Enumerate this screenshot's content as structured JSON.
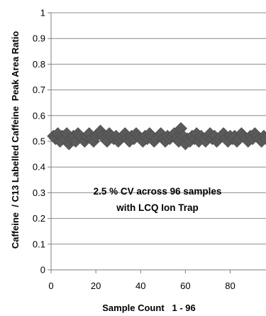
{
  "chart_data": {
    "type": "scatter",
    "title": "",
    "xlabel": "Sample Count   1 - 96",
    "ylabel": "Caffeine  / C13 Labelled Caffeine  Peak Area Ratio",
    "xlim": [
      0,
      96
    ],
    "ylim": [
      0,
      1
    ],
    "x_ticks": [
      0,
      20,
      40,
      60,
      80
    ],
    "y_ticks": [
      0,
      0.1,
      0.2,
      0.3,
      0.4,
      0.5,
      0.6,
      0.7,
      0.8,
      0.9,
      1
    ],
    "grid": true,
    "legend": "none",
    "marker": "diamond",
    "marker_color": "#5a5a5a",
    "annotation": [
      "2.5 % CV across 96 samples",
      "with LCQ Ion Trap"
    ],
    "series": [
      {
        "x": [
          1,
          2,
          3,
          4,
          5,
          6,
          7,
          8,
          9,
          10,
          11,
          12,
          13,
          14,
          15,
          16,
          17,
          18,
          19,
          20,
          21,
          22,
          23,
          24,
          25,
          26,
          27,
          28,
          29,
          30,
          31,
          32,
          33,
          34,
          35,
          36,
          37,
          38,
          39,
          40,
          41,
          42,
          43,
          44,
          45,
          46,
          47,
          48,
          49,
          50,
          51,
          52,
          53,
          54,
          55,
          56,
          57,
          58,
          59,
          60,
          61,
          62,
          63,
          64,
          65,
          66,
          67,
          68,
          69,
          70,
          71,
          72,
          73,
          74,
          75,
          76,
          77,
          78,
          79,
          80,
          81,
          82,
          83,
          84,
          85,
          86,
          87,
          88,
          89,
          90,
          91,
          92,
          93,
          94,
          95,
          96
        ],
        "y": [
          0.52,
          0.51,
          0.53,
          0.5,
          0.52,
          0.51,
          0.53,
          0.49,
          0.51,
          0.52,
          0.5,
          0.53,
          0.52,
          0.51,
          0.5,
          0.52,
          0.53,
          0.51,
          0.5,
          0.52,
          0.53,
          0.54,
          0.52,
          0.51,
          0.5,
          0.53,
          0.52,
          0.51,
          0.52,
          0.5,
          0.51,
          0.52,
          0.53,
          0.51,
          0.5,
          0.52,
          0.51,
          0.53,
          0.52,
          0.51,
          0.5,
          0.52,
          0.51,
          0.53,
          0.52,
          0.5,
          0.51,
          0.52,
          0.53,
          0.51,
          0.5,
          0.52,
          0.51,
          0.52,
          0.53,
          0.51,
          0.5,
          0.55,
          0.52,
          0.49,
          0.51,
          0.5,
          0.52,
          0.51,
          0.53,
          0.5,
          0.52,
          0.51,
          0.5,
          0.52,
          0.53,
          0.51,
          0.52,
          0.5,
          0.51,
          0.52,
          0.53,
          0.51,
          0.5,
          0.52,
          0.51,
          0.52,
          0.5,
          0.51,
          0.53,
          0.52,
          0.51,
          0.5,
          0.52,
          0.51,
          0.53,
          0.52,
          0.51,
          0.5,
          0.52,
          0.51
        ]
      }
    ]
  }
}
